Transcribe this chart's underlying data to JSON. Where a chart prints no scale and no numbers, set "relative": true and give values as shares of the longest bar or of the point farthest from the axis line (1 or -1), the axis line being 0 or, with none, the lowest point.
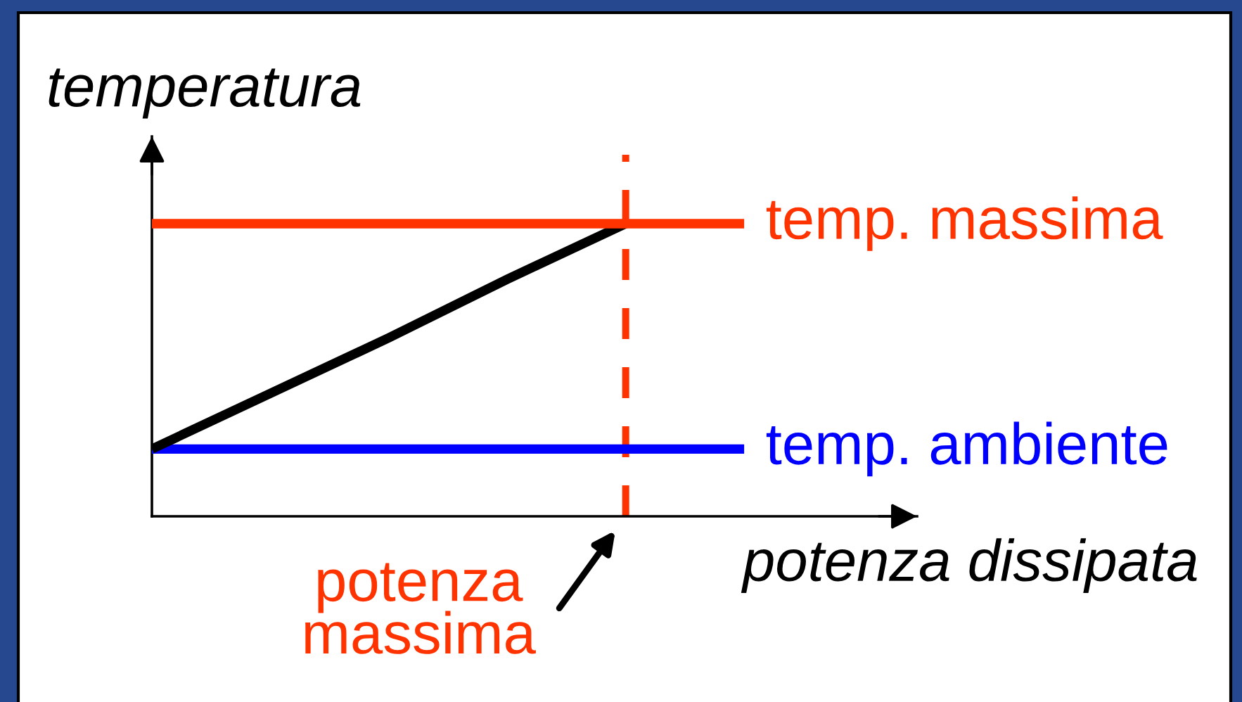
{
  "chart_data": {
    "type": "line",
    "relative": true,
    "xlabel": "potenza dissipata",
    "ylabel": "temperatura",
    "categories": [
      null,
      null,
      null,
      null,
      null,
      null
    ],
    "series": [
      {
        "name": "temp. ambiente",
        "color": "#0000ff",
        "values": [
          0.23,
          0.23,
          0.23,
          0.23,
          0.23,
          0.23
        ]
      },
      {
        "color": "#000000",
        "values": [
          0.23,
          0.42,
          0.61,
          0.81,
          1,
          null
        ]
      },
      {
        "name": "temp. massima",
        "color": "#ff3300",
        "values": [
          1,
          1,
          1,
          1,
          1,
          1
        ]
      }
    ],
    "annotations": [
      "potenza\nmassima"
    ]
  }
}
